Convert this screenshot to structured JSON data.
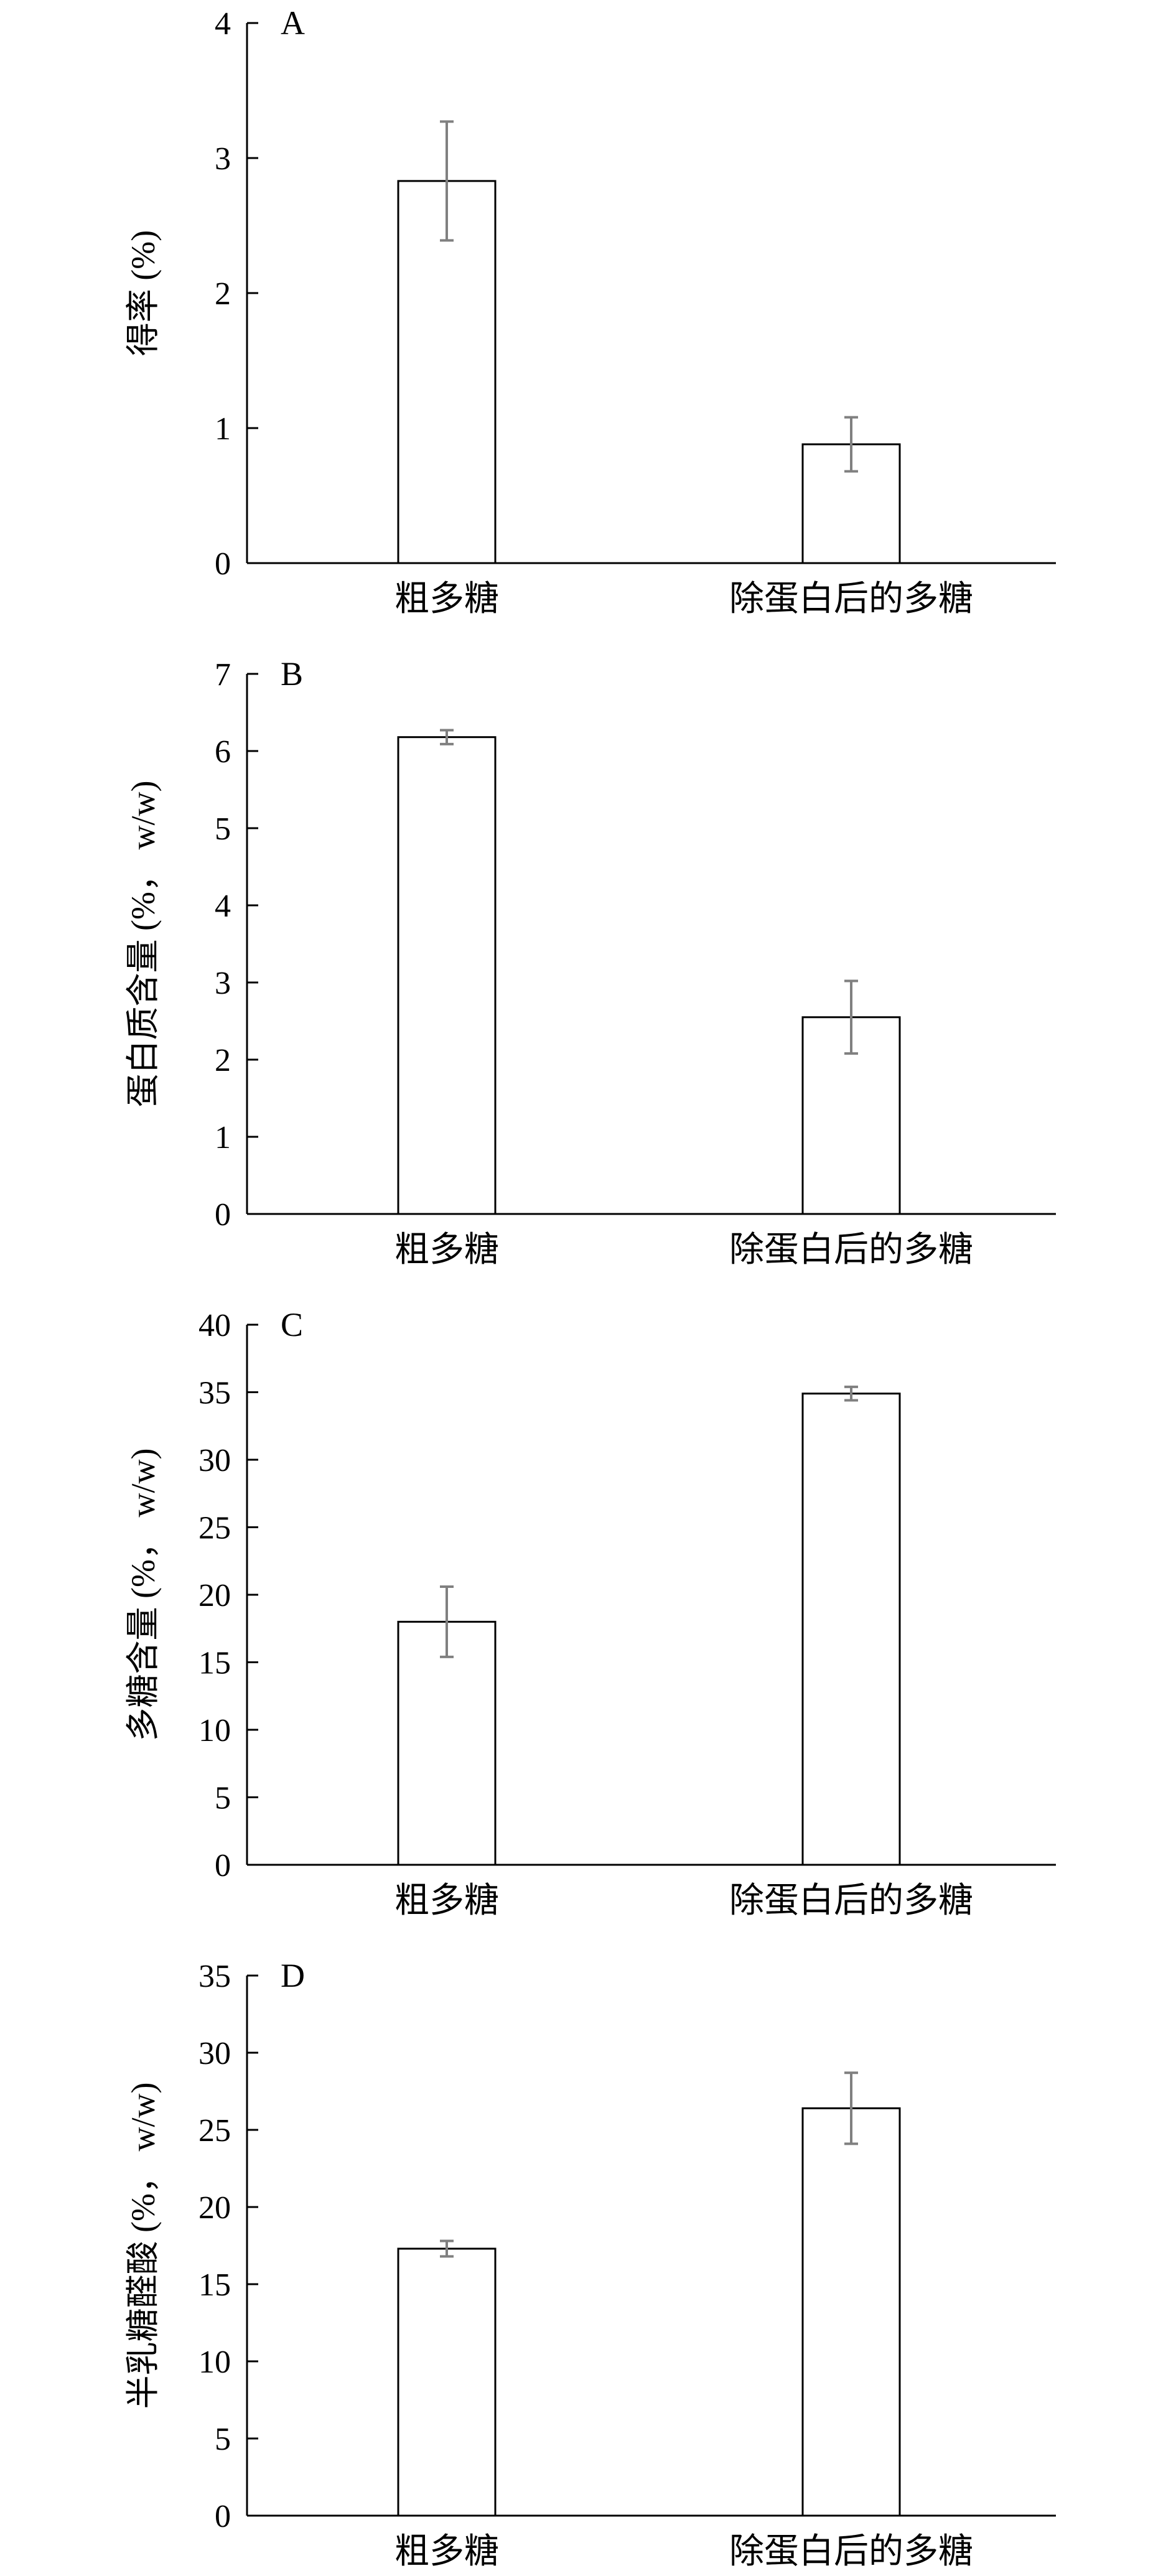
{
  "chart_data": [
    {
      "type": "bar",
      "panel_label": "A",
      "ylabel": "得率 (%)",
      "categories": [
        "粗多糖",
        "除蛋白后的多糖"
      ],
      "values": [
        2.83,
        0.88
      ],
      "error": [
        0.44,
        0.2
      ],
      "ylim": [
        0,
        4
      ],
      "yticks": [
        "0",
        "1",
        "2",
        "3",
        "4"
      ],
      "grid": false,
      "legend": "none"
    },
    {
      "type": "bar",
      "panel_label": "B",
      "ylabel": "蛋白质含量 (%， w/w)",
      "categories": [
        "粗多糖",
        "除蛋白后的多糖"
      ],
      "values": [
        6.18,
        2.55
      ],
      "error": [
        0.09,
        0.47
      ],
      "ylim": [
        0,
        7
      ],
      "yticks": [
        "0",
        "1",
        "2",
        "3",
        "4",
        "5",
        "6",
        "7"
      ],
      "grid": false,
      "legend": "none"
    },
    {
      "type": "bar",
      "panel_label": "C",
      "ylabel": "多糖含量 (%， w/w)",
      "categories": [
        "粗多糖",
        "除蛋白后的多糖"
      ],
      "values": [
        18,
        34.9
      ],
      "error": [
        2.6,
        0.5
      ],
      "ylim": [
        0,
        40
      ],
      "yticks": [
        "0",
        "5",
        "10",
        "15",
        "20",
        "25",
        "30",
        "35",
        "40"
      ],
      "grid": false,
      "legend": "none"
    },
    {
      "type": "bar",
      "panel_label": "D",
      "ylabel": "半乳糖醛酸 (%， w/w)",
      "categories": [
        "粗多糖",
        "除蛋白后的多糖"
      ],
      "values": [
        17.3,
        26.4
      ],
      "error": [
        0.5,
        2.3
      ],
      "ylim": [
        0,
        35
      ],
      "yticks": [
        "0",
        "5",
        "10",
        "15",
        "20",
        "25",
        "30",
        "35"
      ],
      "grid": false,
      "legend": "none"
    }
  ],
  "colors": {
    "bar_fill": "#ffffff",
    "bar_stroke": "#000000",
    "axis": "#000000",
    "error_bar": "#808080"
  }
}
